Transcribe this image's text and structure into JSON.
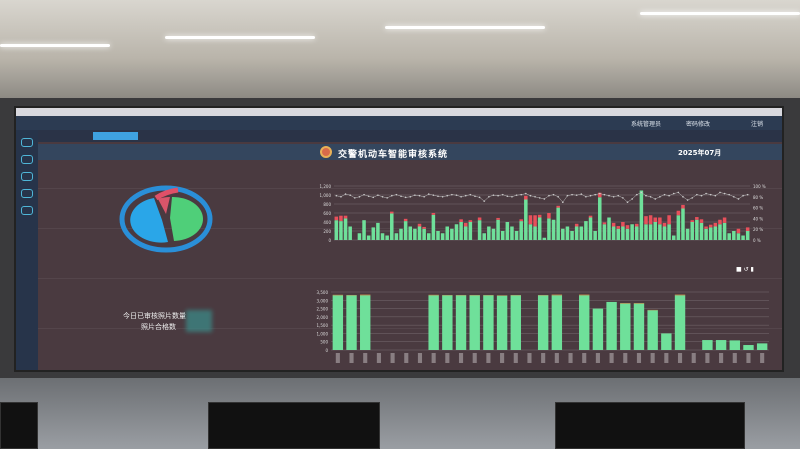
{
  "app": {
    "title": "交警机动车智能审核系统",
    "date": "2025年07月",
    "user_menu": {
      "admin": "系统管理员",
      "change_password": "密码修改",
      "logout": "注销"
    },
    "tabs": [
      {
        "label": "",
        "active": true
      },
      {
        "label": "",
        "active": false
      }
    ]
  },
  "left_panel": {
    "pie_title": "",
    "pie": {
      "type": "pie",
      "slices": [
        {
          "name": "",
          "value": 45,
          "color": "#2aa6e8"
        },
        {
          "name": "",
          "value": 45,
          "color": "#4fcf79"
        },
        {
          "name": "",
          "value": 10,
          "color": "#d9556a"
        }
      ]
    },
    "stats": {
      "today_reviewed_label": "今日已审核照片数量",
      "passed_label": "照片合格数"
    }
  },
  "colors": {
    "pass": "#6fe09a",
    "fail": "#e8505b",
    "bg": "#4a3a40",
    "header": "#34465e"
  },
  "chart_data": [
    {
      "type": "bar",
      "stacked": true,
      "ylim": [
        0,
        1200
      ],
      "y2lim": [
        0,
        100
      ],
      "yticks": [
        "0",
        "200",
        "400",
        "600",
        "800",
        "1,000",
        "1,200"
      ],
      "y2ticks": [
        "0 %",
        "20 %",
        "40 %",
        "60 %",
        "80 %",
        "100 %"
      ],
      "grid": true,
      "series": [
        {
          "type": "bar",
          "color": "#6fe09a",
          "values": [
            440,
            420,
            480,
            300,
            0,
            150,
            440,
            100,
            280,
            380,
            150,
            100,
            590,
            150,
            250,
            420,
            300,
            250,
            300,
            250,
            150,
            560,
            200,
            150,
            300,
            250,
            350,
            400,
            300,
            400,
            0,
            440,
            150,
            300,
            250,
            450,
            200,
            400,
            300,
            200,
            420,
            900,
            350,
            300,
            500,
            50,
            480,
            450,
            720,
            250,
            300,
            200,
            300,
            300,
            420,
            500,
            200,
            950,
            350,
            500,
            300,
            250,
            300,
            250,
            350,
            300,
            1100,
            350,
            350,
            400,
            350,
            300,
            350,
            100,
            550,
            700,
            250,
            400,
            450,
            380,
            250,
            280,
            300,
            350,
            380,
            150,
            200,
            150,
            100,
            200
          ]
        },
        {
          "type": "bar",
          "color": "#e8505b",
          "values": [
            80,
            120,
            60,
            0,
            0,
            0,
            0,
            0,
            0,
            0,
            0,
            0,
            40,
            0,
            0,
            50,
            0,
            0,
            60,
            40,
            0,
            40,
            0,
            0,
            0,
            0,
            0,
            60,
            80,
            40,
            0,
            60,
            0,
            0,
            0,
            40,
            0,
            0,
            0,
            0,
            40,
            80,
            200,
            250,
            60,
            0,
            120,
            0,
            40,
            0,
            0,
            0,
            60,
            0,
            0,
            40,
            0,
            100,
            40,
            0,
            80,
            60,
            100,
            80,
            0,
            60,
            0,
            180,
            200,
            100,
            150,
            80,
            200,
            0,
            100,
            80,
            0,
            40,
            60,
            80,
            50,
            60,
            80,
            100,
            120,
            0,
            0,
            100,
            0,
            80
          ]
        },
        {
          "type": "line",
          "axis": "right",
          "color": "#bbbbbb",
          "values": [
            82,
            80,
            85,
            83,
            78,
            80,
            84,
            81,
            79,
            83,
            80,
            78,
            82,
            84,
            81,
            79,
            80,
            83,
            82,
            80,
            85,
            83,
            81,
            80,
            82,
            84,
            83,
            80,
            82,
            84,
            81,
            79,
            72,
            80,
            83,
            82,
            84,
            81,
            80,
            83,
            84,
            86,
            82,
            80,
            78,
            76,
            82,
            84,
            80,
            70,
            82,
            84,
            83,
            85,
            80,
            82,
            84,
            86,
            84,
            82,
            80,
            82,
            78,
            70,
            76,
            84,
            88,
            82,
            80,
            76,
            80,
            84,
            82,
            86,
            88,
            80,
            74,
            78,
            84,
            82,
            86,
            84,
            82,
            88,
            86,
            84,
            80,
            76,
            82,
            84
          ]
        }
      ]
    },
    {
      "type": "bar",
      "stacked": true,
      "ylim": [
        0,
        3500
      ],
      "yticks": [
        "0",
        "500",
        "1,000",
        "1,500",
        "2,000",
        "2,500",
        "3,000",
        "3,500"
      ],
      "grid": true,
      "series": [
        {
          "color": "#6fe09a",
          "values": [
            3300,
            3300,
            3300,
            0,
            0,
            0,
            0,
            3300,
            3300,
            3300,
            3300,
            3300,
            3280,
            3300,
            0,
            3300,
            3300,
            0,
            3300,
            2500,
            2900,
            2800,
            2800,
            2400,
            1000,
            3300,
            0,
            600,
            600,
            580,
            300,
            400
          ]
        },
        {
          "color": "#e8a050",
          "values": [
            30,
            20,
            40,
            0,
            0,
            0,
            0,
            30,
            20,
            20,
            20,
            20,
            20,
            20,
            0,
            20,
            40,
            0,
            40,
            0,
            0,
            30,
            30,
            20,
            0,
            40,
            0,
            0,
            0,
            0,
            0,
            0
          ]
        }
      ]
    }
  ]
}
